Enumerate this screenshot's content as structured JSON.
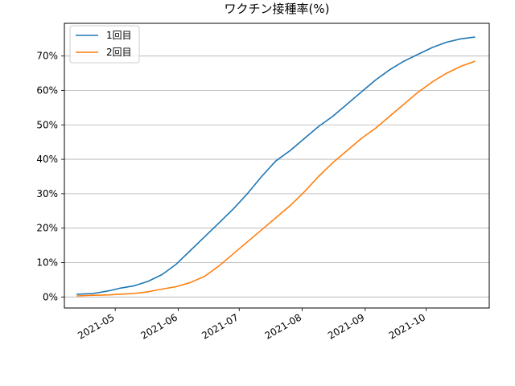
{
  "chart_data": {
    "type": "line",
    "title": "ワクチン接種率(%)",
    "xlabel": "",
    "ylabel": "",
    "x_tick_labels": [
      "2021-05",
      "2021-06",
      "2021-07",
      "2021-08",
      "2021-09",
      "2021-10"
    ],
    "x_tick_dates": [
      "2021-05-01",
      "2021-06-01",
      "2021-07-01",
      "2021-08-01",
      "2021-09-01",
      "2021-10-01"
    ],
    "xlim": [
      "2021-04-06",
      "2021-11-01"
    ],
    "y_tick_labels": [
      "0%",
      "10%",
      "20%",
      "30%",
      "40%",
      "50%",
      "60%",
      "70%"
    ],
    "y_tick_values": [
      0,
      10,
      20,
      30,
      40,
      50,
      60,
      70
    ],
    "ylim": [
      -3.2,
      79.5
    ],
    "grid": "y",
    "legend_position": "upper left",
    "series": [
      {
        "name": "1回目",
        "color": "#1f77b4",
        "x": [
          "2021-04-12",
          "2021-04-20",
          "2021-04-28",
          "2021-05-03",
          "2021-05-10",
          "2021-05-17",
          "2021-05-24",
          "2021-05-31",
          "2021-06-07",
          "2021-06-14",
          "2021-06-21",
          "2021-06-28",
          "2021-07-05",
          "2021-07-12",
          "2021-07-19",
          "2021-07-26",
          "2021-08-02",
          "2021-08-09",
          "2021-08-16",
          "2021-08-23",
          "2021-08-30",
          "2021-09-06",
          "2021-09-13",
          "2021-09-20",
          "2021-09-27",
          "2021-10-04",
          "2021-10-11",
          "2021-10-18",
          "2021-10-25"
        ],
        "values": [
          0.8,
          1.0,
          1.8,
          2.5,
          3.2,
          4.5,
          6.5,
          9.5,
          13.5,
          17.5,
          21.5,
          25.5,
          30.0,
          35.0,
          39.5,
          42.5,
          46.0,
          49.5,
          52.5,
          56.0,
          59.5,
          63.0,
          66.0,
          68.5,
          70.5,
          72.5,
          74.0,
          75.0,
          75.5
        ]
      },
      {
        "name": "2回目",
        "color": "#ff7f0e",
        "x": [
          "2021-04-12",
          "2021-04-20",
          "2021-04-28",
          "2021-05-03",
          "2021-05-10",
          "2021-05-17",
          "2021-05-24",
          "2021-05-31",
          "2021-06-07",
          "2021-06-14",
          "2021-06-21",
          "2021-06-28",
          "2021-07-05",
          "2021-07-12",
          "2021-07-19",
          "2021-07-26",
          "2021-08-02",
          "2021-08-09",
          "2021-08-16",
          "2021-08-23",
          "2021-08-30",
          "2021-09-06",
          "2021-09-13",
          "2021-09-20",
          "2021-09-27",
          "2021-10-04",
          "2021-10-11",
          "2021-10-18",
          "2021-10-25"
        ],
        "values": [
          0.3,
          0.5,
          0.6,
          0.8,
          1.0,
          1.5,
          2.3,
          3.0,
          4.2,
          6.0,
          9.0,
          12.5,
          16.0,
          19.5,
          23.0,
          26.5,
          30.5,
          35.0,
          39.0,
          42.5,
          46.0,
          49.0,
          52.5,
          56.0,
          59.5,
          62.5,
          65.0,
          67.0,
          68.5
        ]
      }
    ]
  }
}
